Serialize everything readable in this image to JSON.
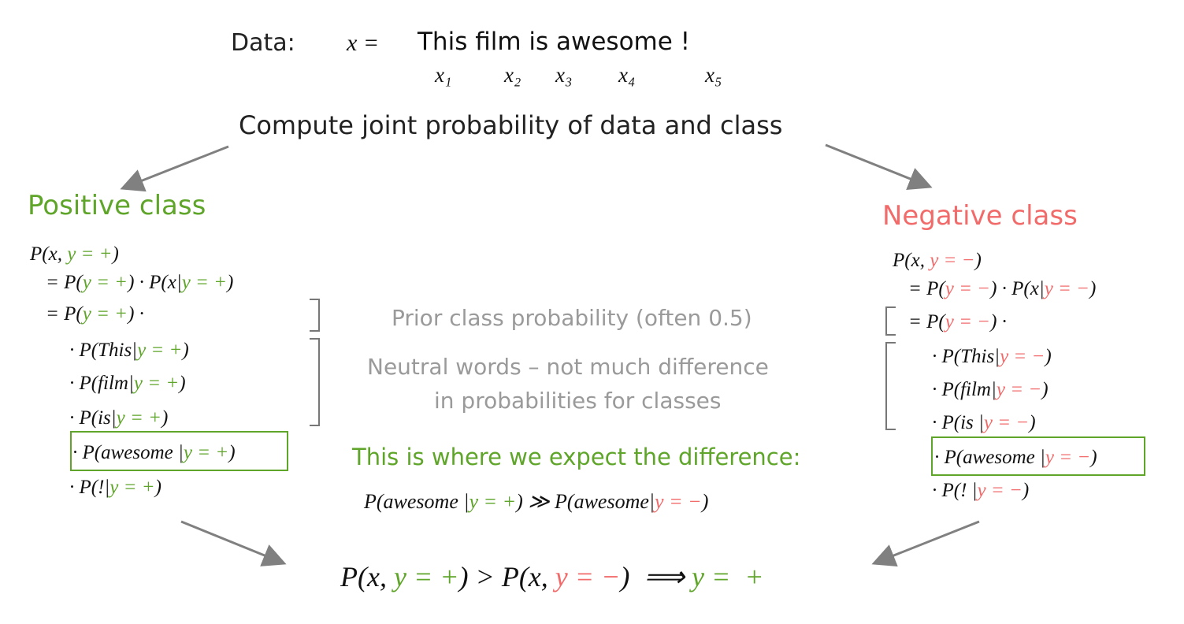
{
  "header": {
    "label": "Data:",
    "x_equals": "x =",
    "sentence": "This film is awesome !",
    "tokens": [
      "x₁",
      "x₂",
      "x₃",
      "x₄",
      "x₅"
    ]
  },
  "intro": "Compute joint probability of data and class",
  "positive": {
    "title": "Positive class",
    "color": "#5ea529",
    "lines": [
      [
        {
          "text": "P(x, "
        },
        {
          "text": "y = +",
          "color": "#5ea529"
        },
        {
          "text": ")"
        }
      ],
      [
        {
          "text": "= P("
        },
        {
          "text": "y = +",
          "color": "#5ea529"
        },
        {
          "text": ") · P(x|"
        },
        {
          "text": "y = +",
          "color": "#5ea529"
        },
        {
          "text": ")"
        }
      ],
      [
        {
          "text": "= P("
        },
        {
          "text": "y = +",
          "color": "#5ea529"
        },
        {
          "text": ") ·"
        }
      ],
      [
        {
          "text": "· P(This|"
        },
        {
          "text": "y = +",
          "color": "#5ea529"
        },
        {
          "text": ")"
        }
      ],
      [
        {
          "text": "· P(film|"
        },
        {
          "text": "y = +",
          "color": "#5ea529"
        },
        {
          "text": ")"
        }
      ],
      [
        {
          "text": "· P(is|"
        },
        {
          "text": "y = +",
          "color": "#5ea529"
        },
        {
          "text": ")"
        }
      ],
      [
        {
          "text": "· P(awesome |"
        },
        {
          "text": "y = +",
          "color": "#5ea529"
        },
        {
          "text": ")"
        }
      ],
      [
        {
          "text": "· P(!|"
        },
        {
          "text": "y = +",
          "color": "#5ea529"
        },
        {
          "text": ")"
        }
      ]
    ]
  },
  "negative": {
    "title": "Negative class",
    "color": "#f26b6b",
    "lines": [
      [
        {
          "text": "P(x, "
        },
        {
          "text": "y = −",
          "color": "#f26b6b"
        },
        {
          "text": ")"
        }
      ],
      [
        {
          "text": "= P("
        },
        {
          "text": "y = −",
          "color": "#f26b6b"
        },
        {
          "text": ") · P(x|"
        },
        {
          "text": "y = −",
          "color": "#f26b6b"
        },
        {
          "text": ")"
        }
      ],
      [
        {
          "text": "= P("
        },
        {
          "text": "y = −",
          "color": "#f26b6b"
        },
        {
          "text": ") ·"
        }
      ],
      [
        {
          "text": "· P(This|"
        },
        {
          "text": "y = −",
          "color": "#f26b6b"
        },
        {
          "text": ")"
        }
      ],
      [
        {
          "text": "· P(film|"
        },
        {
          "text": "y = −",
          "color": "#f26b6b"
        },
        {
          "text": ")"
        }
      ],
      [
        {
          "text": "· P(is |"
        },
        {
          "text": "y = −",
          "color": "#f26b6b"
        },
        {
          "text": ")"
        }
      ],
      [
        {
          "text": "· P(awesome |"
        },
        {
          "text": "y = −",
          "color": "#f26b6b"
        },
        {
          "text": ")"
        }
      ],
      [
        {
          "text": "· P(! |"
        },
        {
          "text": "y = −",
          "color": "#f26b6b"
        },
        {
          "text": ")"
        }
      ]
    ]
  },
  "notes": {
    "prior": "Prior class probability (often 0.5)",
    "neutral": [
      "Neutral words – not much difference",
      "in probabilities for classes"
    ],
    "expect": "This is where we expect the difference:",
    "comparison": [
      {
        "text": "P(awesome |"
      },
      {
        "text": "y = +",
        "color": "#5ea529"
      },
      {
        "text": ") ≫ P(awesome|"
      },
      {
        "text": "y = −",
        "color": "#f26b6b"
      },
      {
        "text": ")"
      }
    ]
  },
  "conclusion": [
    {
      "text": "P(x, "
    },
    {
      "text": "y = +",
      "color": "#5ea529"
    },
    {
      "text": ") > P(x, "
    },
    {
      "text": "y = −",
      "color": "#f26b6b"
    },
    {
      "text": ")  ⟹ "
    },
    {
      "text": "y =  +",
      "color": "#5ea529"
    }
  ]
}
